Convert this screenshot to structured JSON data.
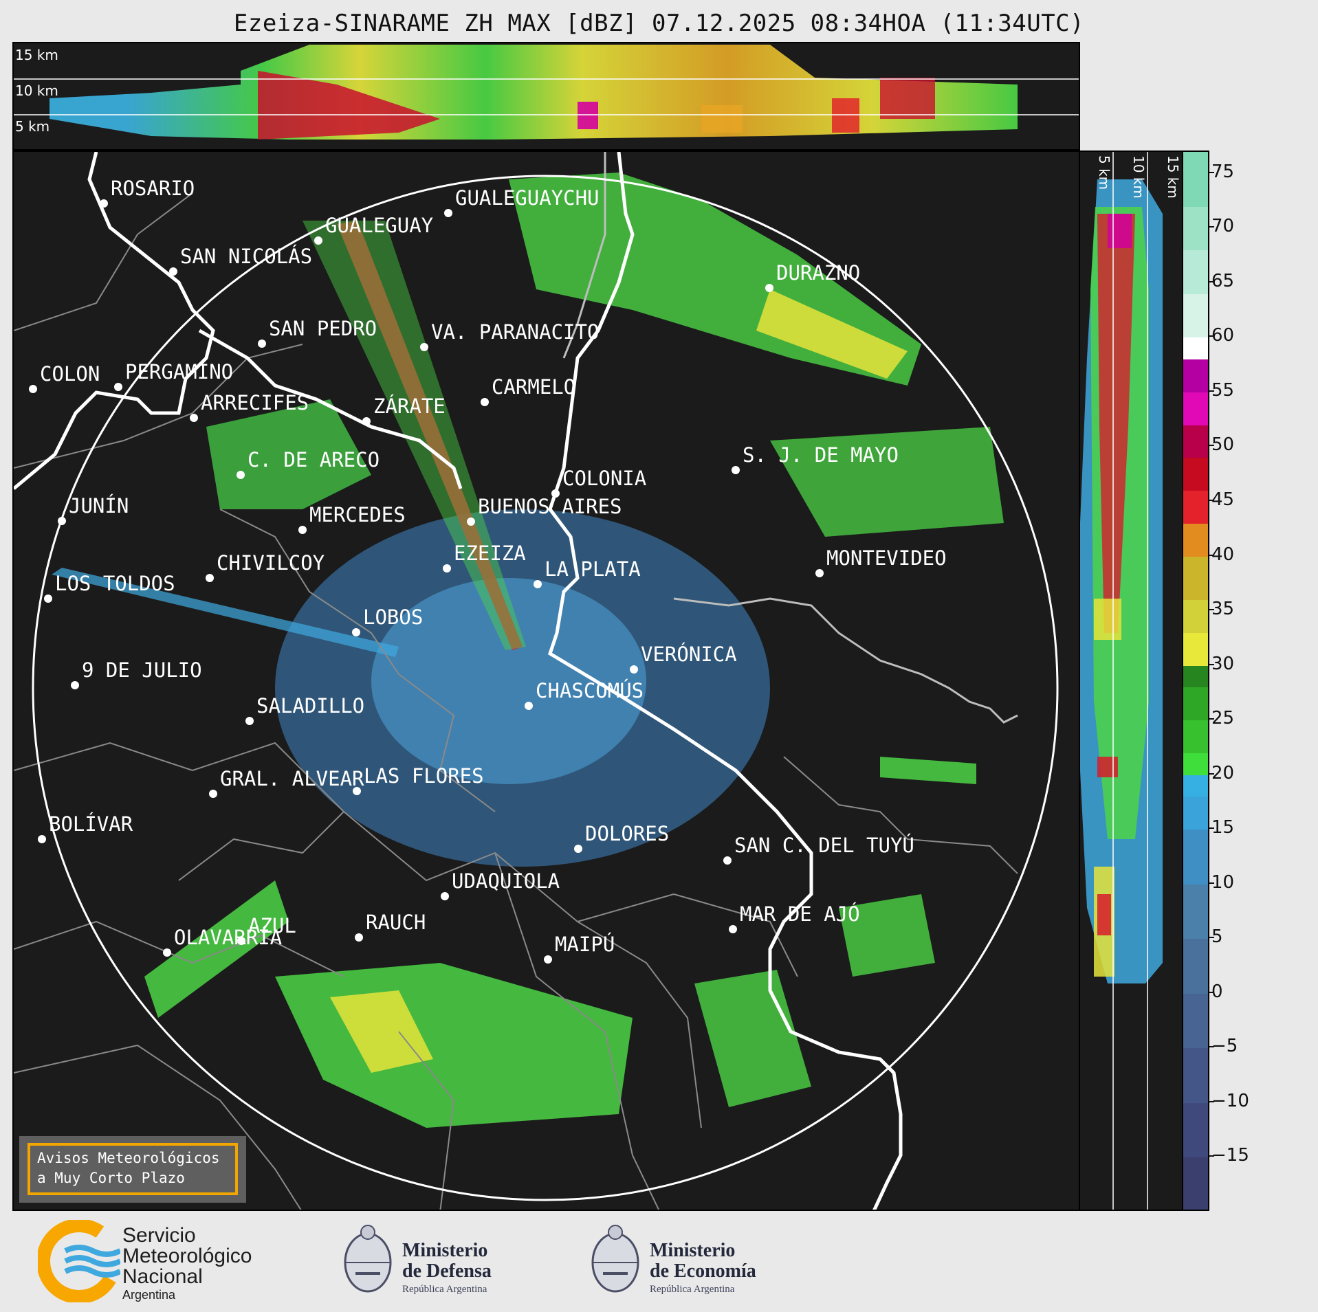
{
  "title": "Ezeiza-SINARAME ZH MAX [dBZ] 07.12.2025 08:34HOA (11:34UTC)",
  "colors": {
    "panel_bg": "#1b1b1b",
    "range_ring": "#ffffff",
    "rivers_coast": "#ffffff",
    "admin_boundaries": "#8a8a8a",
    "alert_border": "#f3a500",
    "smn_orange": "#f7a700",
    "smn_blue": "#3fa9df"
  },
  "top_panel": {
    "altitude_labels": [
      "15 km",
      "10 km",
      "5 km"
    ]
  },
  "side_panel": {
    "altitude_labels": [
      "5 km",
      "10 km",
      "15 km"
    ]
  },
  "colorbar": {
    "unit": "dBZ",
    "range": [
      -20,
      77
    ],
    "ticks": [
      "75",
      "70",
      "65",
      "60",
      "55",
      "50",
      "45",
      "40",
      "35",
      "30",
      "25",
      "20",
      "15",
      "10",
      "5",
      "0",
      "−5",
      "−10",
      "−15"
    ],
    "tick_values": [
      75,
      70,
      65,
      60,
      55,
      50,
      45,
      40,
      35,
      30,
      25,
      20,
      15,
      10,
      5,
      0,
      -5,
      -10,
      -15
    ]
  },
  "map": {
    "radar_site": "EZEIZA",
    "cities": [
      {
        "name": "ROSARIO"
      },
      {
        "name": "GUALEGUAYCHU"
      },
      {
        "name": "GUALEGUAY"
      },
      {
        "name": "SAN NICOLÁS"
      },
      {
        "name": "DURAZNO"
      },
      {
        "name": "SAN PEDRO"
      },
      {
        "name": "VA. PARANACITO"
      },
      {
        "name": "COLON"
      },
      {
        "name": "PERGAMINO"
      },
      {
        "name": "CARMELO"
      },
      {
        "name": "ARRECIFES"
      },
      {
        "name": "ZÁRATE"
      },
      {
        "name": "S. J. DE MAYO"
      },
      {
        "name": "C. DE ARECO"
      },
      {
        "name": "COLONIA"
      },
      {
        "name": "JUNÍN"
      },
      {
        "name": "BUENOS AIRES"
      },
      {
        "name": "MERCEDES"
      },
      {
        "name": "MONTEVIDEO"
      },
      {
        "name": "EZEIZA"
      },
      {
        "name": "CHIVILCOY"
      },
      {
        "name": "LA PLATA"
      },
      {
        "name": "LOS TOLDOS"
      },
      {
        "name": "LOBOS"
      },
      {
        "name": "VERÓNICA"
      },
      {
        "name": "9 DE JULIO"
      },
      {
        "name": "CHASCOMÚS"
      },
      {
        "name": "SALADILLO"
      },
      {
        "name": "GRAL. ALVEAR"
      },
      {
        "name": "LAS FLORES"
      },
      {
        "name": "BOLÍVAR"
      },
      {
        "name": "DOLORES"
      },
      {
        "name": "SAN C. DEL TUYÚ"
      },
      {
        "name": "UDAQUIOLA"
      },
      {
        "name": "MAR DE AJÓ"
      },
      {
        "name": "RAUCH"
      },
      {
        "name": "AZUL"
      },
      {
        "name": "OLAVARRÍA"
      },
      {
        "name": "MAIPÚ"
      }
    ]
  },
  "alert_box": {
    "line1": "Avisos Meteorológicos",
    "line2": "a Muy Corto Plazo"
  },
  "footer": {
    "smn": {
      "line1": "Servicio",
      "line2": "Meteorológico",
      "line3": "Nacional",
      "line4": "Argentina"
    },
    "defensa": {
      "line1": "Ministerio",
      "line2": "de Defensa",
      "line3": "República Argentina"
    },
    "economia": {
      "line1": "Ministerio",
      "line2": "de Economía",
      "line3": "República Argentina"
    }
  }
}
